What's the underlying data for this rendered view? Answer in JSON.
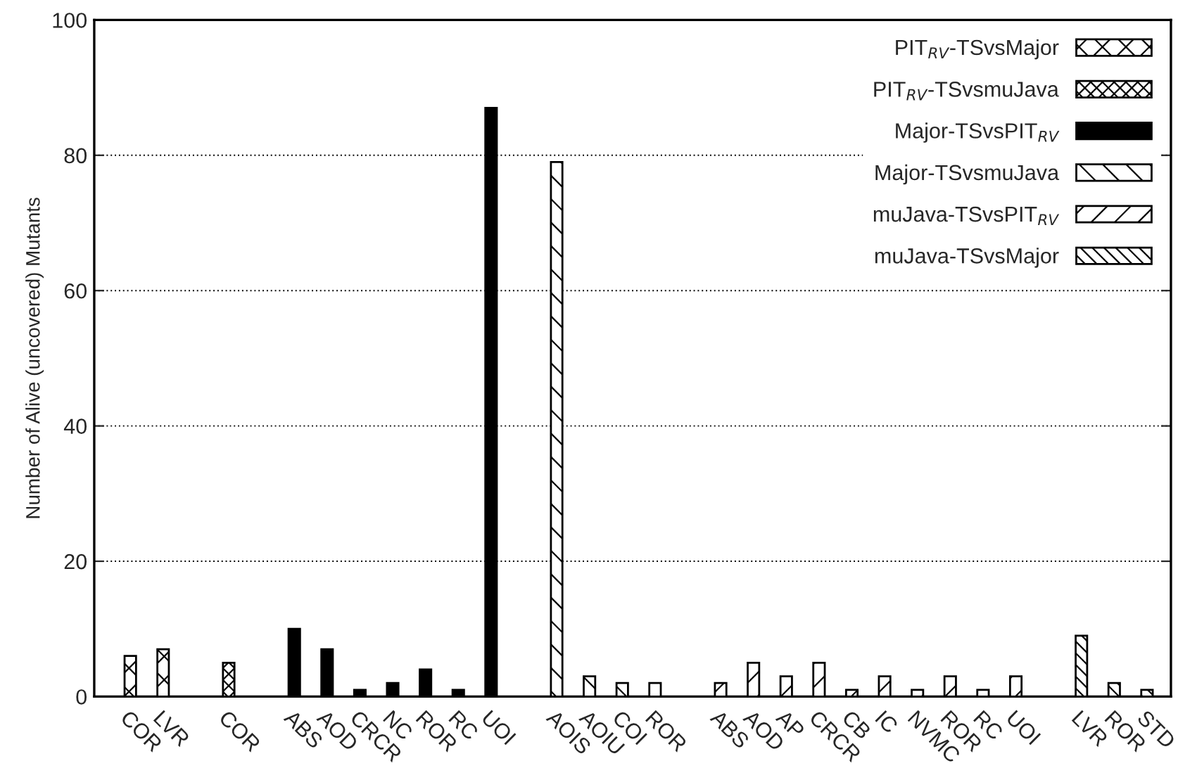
{
  "chart_data": {
    "type": "bar",
    "ylabel": "Number of Alive (uncovered) Mutants",
    "categories": [
      "COR",
      "LVR",
      null,
      "COR",
      null,
      "ABS",
      "AOD",
      "CRCR",
      "NC",
      "ROR",
      "RC",
      "UOI",
      null,
      "AOIS",
      "AOIU",
      "COI",
      "ROR",
      null,
      "ABS",
      "AOD",
      "AP",
      "CRCR",
      "CB",
      "IC",
      "NVMC",
      "ROR",
      "RC",
      "UOI",
      null,
      "LVR",
      "ROR",
      "STD"
    ],
    "series": [
      {
        "name": "PIT$_{RV}$-TSvsMajor",
        "color": "#000000",
        "values": [
          6,
          7,
          null,
          null,
          null,
          null,
          null,
          null,
          null,
          null,
          null,
          null,
          null,
          null,
          null,
          null,
          null,
          null,
          null,
          null,
          null,
          null,
          null,
          null,
          null,
          null,
          null,
          null,
          null,
          null,
          null,
          null
        ]
      },
      {
        "name": "PIT$_{RV}$-TSvsmuJava",
        "color": "#000000",
        "values": [
          null,
          null,
          null,
          5,
          null,
          null,
          null,
          null,
          null,
          null,
          null,
          null,
          null,
          null,
          null,
          null,
          null,
          null,
          null,
          null,
          null,
          null,
          null,
          null,
          null,
          null,
          null,
          null,
          null,
          null,
          null,
          null
        ]
      },
      {
        "name": "Major-TSvsPIT$_{RV}$",
        "color": "#000000",
        "values": [
          null,
          null,
          null,
          null,
          null,
          10,
          7,
          1,
          2,
          4,
          1,
          87,
          null,
          null,
          null,
          null,
          null,
          null,
          null,
          null,
          null,
          null,
          null,
          null,
          null,
          null,
          null,
          null,
          null,
          null,
          null,
          null
        ]
      },
      {
        "name": "Major-TSvsmuJava",
        "color": "#000000",
        "values": [
          null,
          null,
          null,
          null,
          null,
          null,
          null,
          null,
          null,
          null,
          null,
          null,
          null,
          79,
          3,
          2,
          2,
          null,
          null,
          null,
          null,
          null,
          null,
          null,
          null,
          null,
          null,
          null,
          null,
          null,
          null,
          null
        ]
      },
      {
        "name": "muJava-TSvsPIT$_{RV}$",
        "color": "#000000",
        "values": [
          null,
          null,
          null,
          null,
          null,
          null,
          null,
          null,
          null,
          null,
          null,
          null,
          null,
          null,
          null,
          null,
          null,
          null,
          2,
          5,
          3,
          5,
          1,
          3,
          1,
          3,
          1,
          3,
          null,
          null,
          null,
          null
        ]
      },
      {
        "name": "muJava-TSvsMajor",
        "color": "#000000",
        "values": [
          null,
          null,
          null,
          null,
          null,
          null,
          null,
          null,
          null,
          null,
          null,
          null,
          null,
          null,
          null,
          null,
          null,
          null,
          null,
          null,
          null,
          null,
          null,
          null,
          null,
          null,
          null,
          null,
          null,
          9,
          2,
          1
        ]
      }
    ],
    "ylim": [
      0,
      100
    ],
    "yticks": [
      0,
      20,
      40,
      60,
      80,
      100
    ],
    "grid": "y",
    "legend": "top right"
  }
}
